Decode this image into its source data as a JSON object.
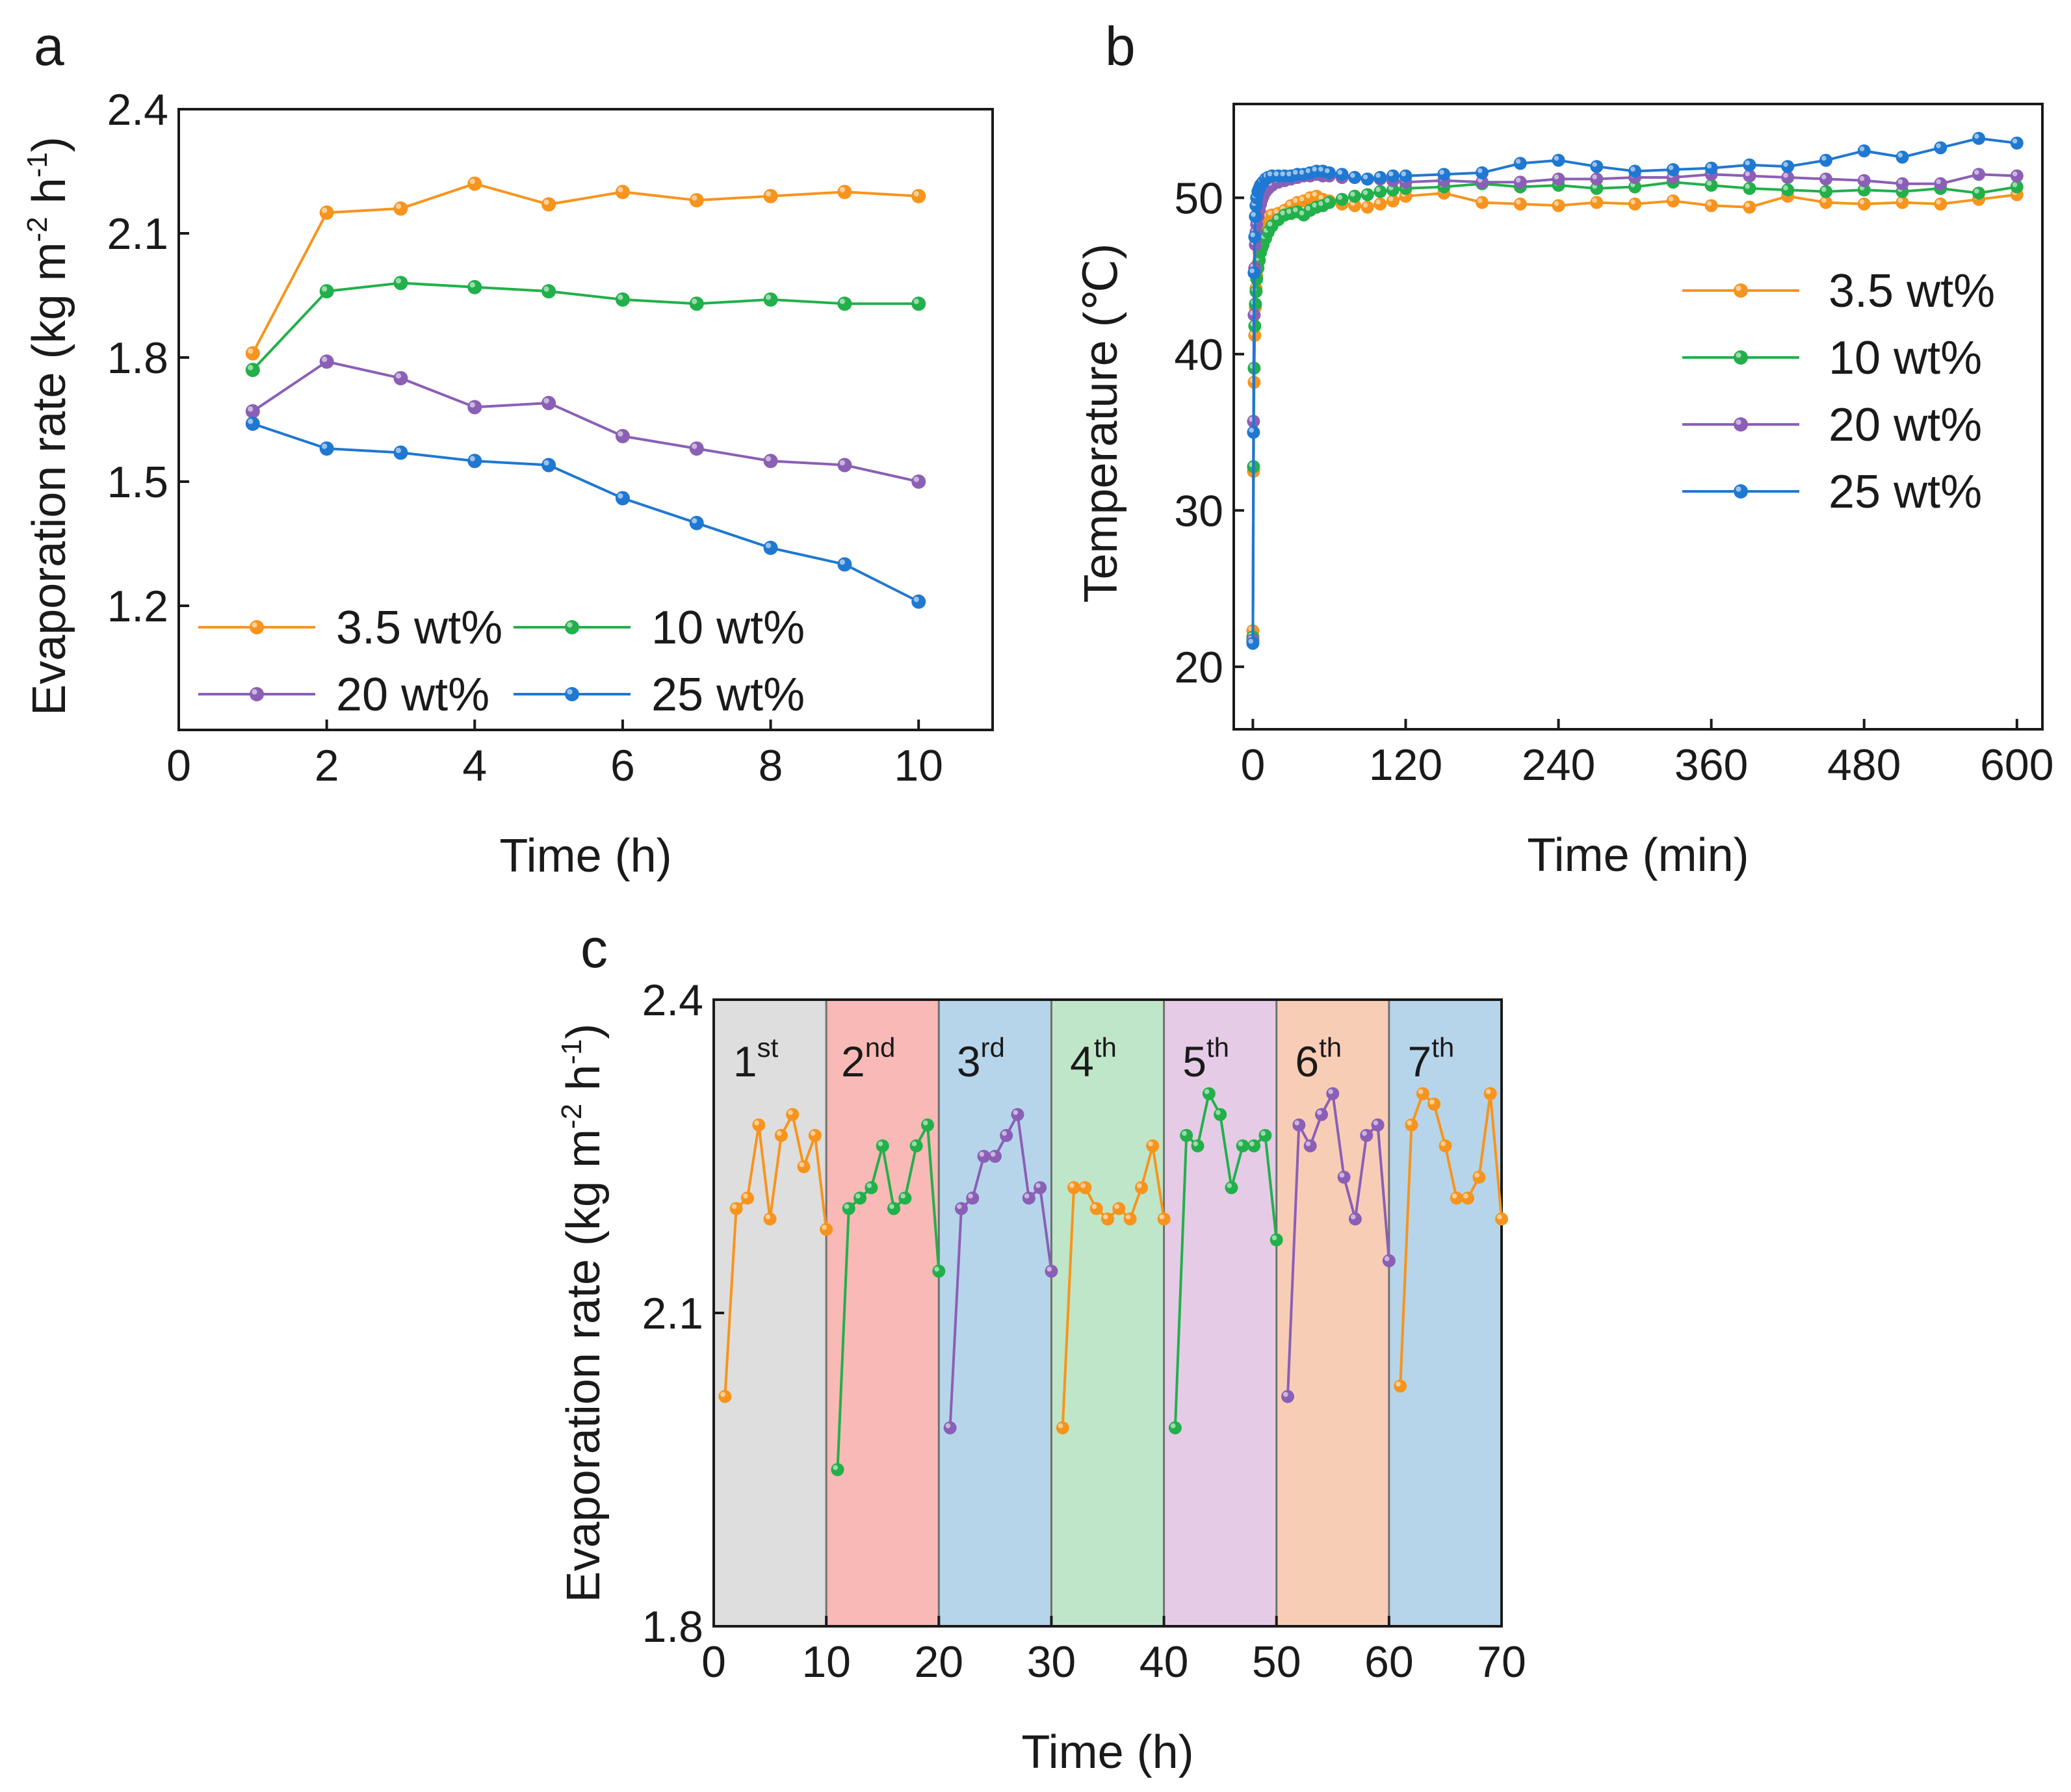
{
  "chart_data": [
    {
      "panel": "a",
      "type": "line",
      "xlabel": "Time (h)",
      "ylabel_parts": [
        "Evaporation rate (kg m",
        "-2",
        " h",
        "-1",
        ")"
      ],
      "xlim": [
        0,
        11
      ],
      "ylim": [
        0.9,
        2.4
      ],
      "xticks": [
        0,
        2,
        4,
        6,
        8,
        10
      ],
      "yticks": [
        1.2,
        1.5,
        1.8,
        2.1,
        2.4
      ],
      "tick_labels_x": [
        "0",
        "2",
        "4",
        "6",
        "8",
        "10"
      ],
      "tick_labels_y": [
        "1.2",
        "1.5",
        "1.8",
        "2.1",
        "2.4"
      ],
      "x": [
        1,
        2,
        3,
        4,
        5,
        6,
        7,
        8,
        9,
        10
      ],
      "legend_position": "bottom-left",
      "series": [
        {
          "name": "3.5 wt%",
          "color": "#f7941d",
          "values": [
            1.81,
            2.15,
            2.16,
            2.22,
            2.17,
            2.2,
            2.18,
            2.19,
            2.2,
            2.19
          ]
        },
        {
          "name": "10 wt%",
          "color": "#22b04b",
          "values": [
            1.77,
            1.96,
            1.98,
            1.97,
            1.96,
            1.94,
            1.93,
            1.94,
            1.93,
            1.93
          ]
        },
        {
          "name": "20 wt%",
          "color": "#8b5fb6",
          "values": [
            1.67,
            1.79,
            1.75,
            1.68,
            1.69,
            1.61,
            1.58,
            1.55,
            1.54,
            1.5
          ]
        },
        {
          "name": "25 wt%",
          "color": "#1f78d1",
          "values": [
            1.64,
            1.58,
            1.57,
            1.55,
            1.54,
            1.46,
            1.4,
            1.34,
            1.3,
            1.21
          ]
        }
      ]
    },
    {
      "panel": "b",
      "type": "line",
      "xlabel": "Time (min)",
      "ylabel": "Temperature (℃)",
      "xlim": [
        -15,
        620
      ],
      "ylim": [
        16,
        56
      ],
      "xticks": [
        0,
        120,
        240,
        360,
        480,
        600
      ],
      "yticks": [
        20,
        30,
        40,
        50
      ],
      "tick_labels_x": [
        "0",
        "120",
        "240",
        "360",
        "480",
        "600"
      ],
      "tick_labels_y": [
        "20",
        "30",
        "40",
        "50"
      ],
      "x": [
        0,
        0.5,
        1,
        1.5,
        2,
        2.5,
        3,
        4,
        5,
        6,
        7,
        8,
        10,
        12,
        15,
        20,
        25,
        30,
        35,
        40,
        45,
        50,
        55,
        60,
        70,
        80,
        90,
        100,
        110,
        120,
        150,
        180,
        210,
        240,
        270,
        300,
        330,
        360,
        390,
        420,
        450,
        480,
        510,
        540,
        570,
        600
      ],
      "legend_position": "center-right",
      "series": [
        {
          "name": "3.5 wt%",
          "color": "#f7941d",
          "values": [
            22.3,
            32.5,
            38.2,
            41.2,
            43.0,
            44.2,
            45.0,
            45.8,
            46.5,
            47.2,
            47.8,
            48.2,
            48.6,
            48.8,
            48.9,
            49.0,
            49.2,
            49.5,
            49.7,
            49.8,
            50.0,
            50.1,
            49.9,
            49.8,
            49.6,
            49.5,
            49.4,
            49.6,
            49.8,
            50.1,
            50.3,
            49.7,
            49.6,
            49.5,
            49.7,
            49.6,
            49.8,
            49.5,
            49.4,
            50.1,
            49.7,
            49.6,
            49.7,
            49.6,
            49.9,
            50.2
          ]
        },
        {
          "name": "10 wt%",
          "color": "#22b04b",
          "values": [
            21.9,
            32.8,
            39.1,
            41.8,
            43.2,
            44.0,
            44.8,
            45.5,
            46.0,
            46.5,
            46.8,
            47.0,
            47.4,
            47.8,
            48.2,
            48.6,
            48.9,
            49.0,
            49.1,
            48.9,
            49.2,
            49.4,
            49.5,
            49.7,
            49.9,
            50.1,
            50.2,
            50.4,
            50.5,
            50.6,
            50.7,
            50.9,
            50.7,
            50.8,
            50.6,
            50.7,
            51.0,
            50.8,
            50.6,
            50.5,
            50.4,
            50.5,
            50.4,
            50.6,
            50.3,
            50.7
          ]
        },
        {
          "name": "20 wt%",
          "color": "#8b5fb6",
          "values": [
            21.7,
            35.7,
            42.5,
            45.5,
            47.0,
            47.8,
            48.3,
            48.8,
            49.2,
            49.6,
            49.9,
            50.1,
            50.4,
            50.6,
            50.8,
            51.0,
            51.1,
            51.2,
            51.3,
            51.4,
            51.4,
            51.5,
            51.4,
            51.4,
            51.3,
            51.3,
            51.2,
            51.2,
            51.1,
            51.0,
            51.1,
            51.0,
            51.0,
            51.2,
            51.2,
            51.3,
            51.3,
            51.5,
            51.4,
            51.3,
            51.2,
            51.1,
            50.9,
            50.9,
            51.5,
            51.4
          ]
        },
        {
          "name": "25 wt%",
          "color": "#1f78d1",
          "values": [
            21.5,
            35.0,
            45.2,
            47.5,
            48.8,
            49.5,
            50.0,
            50.4,
            50.6,
            50.8,
            50.9,
            51.0,
            51.2,
            51.3,
            51.4,
            51.4,
            51.4,
            51.4,
            51.5,
            51.5,
            51.6,
            51.7,
            51.7,
            51.6,
            51.5,
            51.3,
            51.2,
            51.3,
            51.4,
            51.4,
            51.5,
            51.6,
            52.2,
            52.4,
            52.0,
            51.7,
            51.8,
            51.9,
            52.1,
            52.0,
            52.4,
            53.0,
            52.6,
            53.2,
            53.8,
            53.5
          ]
        }
      ]
    },
    {
      "panel": "c",
      "type": "line",
      "xlabel": "Time (h)",
      "ylabel_parts": [
        "Evaporation rate (kg m",
        "-2",
        " h",
        "-1",
        ")"
      ],
      "xlim": [
        0,
        70
      ],
      "ylim": [
        1.8,
        2.4
      ],
      "xticks": [
        0,
        10,
        20,
        30,
        40,
        50,
        60,
        70
      ],
      "yticks": [
        1.8,
        2.1,
        2.4
      ],
      "tick_labels_x": [
        "0",
        "10",
        "20",
        "30",
        "40",
        "50",
        "60",
        "70"
      ],
      "tick_labels_y": [
        "1.8",
        "2.1",
        "2.4"
      ],
      "cycles": [
        {
          "num": "1",
          "sup": "st",
          "bg": "#dedede",
          "color": "#f7941d",
          "x": [
            1,
            2,
            3,
            4,
            5,
            6,
            7,
            8,
            9,
            10
          ],
          "values": [
            2.02,
            2.2,
            2.21,
            2.28,
            2.19,
            2.27,
            2.29,
            2.24,
            2.27,
            2.18
          ]
        },
        {
          "num": "2",
          "sup": "nd",
          "bg": "#f9b9b6",
          "color": "#22b04b",
          "x": [
            11,
            12,
            13,
            14,
            15,
            16,
            17,
            18,
            19,
            20
          ],
          "values": [
            1.95,
            2.2,
            2.21,
            2.22,
            2.26,
            2.2,
            2.21,
            2.26,
            2.28,
            2.14
          ]
        },
        {
          "num": "3",
          "sup": "rd",
          "bg": "#b6d5ea",
          "color": "#8b5fb6",
          "x": [
            21,
            22,
            23,
            24,
            25,
            26,
            27,
            28,
            29,
            30
          ],
          "values": [
            1.99,
            2.2,
            2.21,
            2.25,
            2.25,
            2.27,
            2.29,
            2.21,
            2.22,
            2.14
          ]
        },
        {
          "num": "4",
          "sup": "th",
          "bg": "#bfe6c8",
          "color": "#f7941d",
          "x": [
            31,
            32,
            33,
            34,
            35,
            36,
            37,
            38,
            39,
            40
          ],
          "values": [
            1.99,
            2.22,
            2.22,
            2.2,
            2.19,
            2.2,
            2.19,
            2.22,
            2.26,
            2.19
          ]
        },
        {
          "num": "5",
          "sup": "th",
          "bg": "#e6cbe7",
          "color": "#22b04b",
          "x": [
            41,
            42,
            43,
            44,
            45,
            46,
            47,
            48,
            49,
            50
          ],
          "values": [
            1.99,
            2.27,
            2.26,
            2.31,
            2.29,
            2.22,
            2.26,
            2.26,
            2.27,
            2.17
          ]
        },
        {
          "num": "6",
          "sup": "th",
          "bg": "#f8cdb6",
          "color": "#8b5fb6",
          "x": [
            51,
            52,
            53,
            54,
            55,
            56,
            57,
            58,
            59,
            60
          ],
          "values": [
            2.02,
            2.28,
            2.26,
            2.29,
            2.31,
            2.23,
            2.19,
            2.27,
            2.28,
            2.15
          ]
        },
        {
          "num": "7",
          "sup": "th",
          "bg": "#b6d5ea",
          "color": "#f7941d",
          "x": [
            61,
            62,
            63,
            64,
            65,
            66,
            67,
            68,
            69,
            70
          ],
          "values": [
            2.03,
            2.28,
            2.31,
            2.3,
            2.26,
            2.21,
            2.21,
            2.23,
            2.31,
            2.19
          ]
        }
      ]
    }
  ]
}
